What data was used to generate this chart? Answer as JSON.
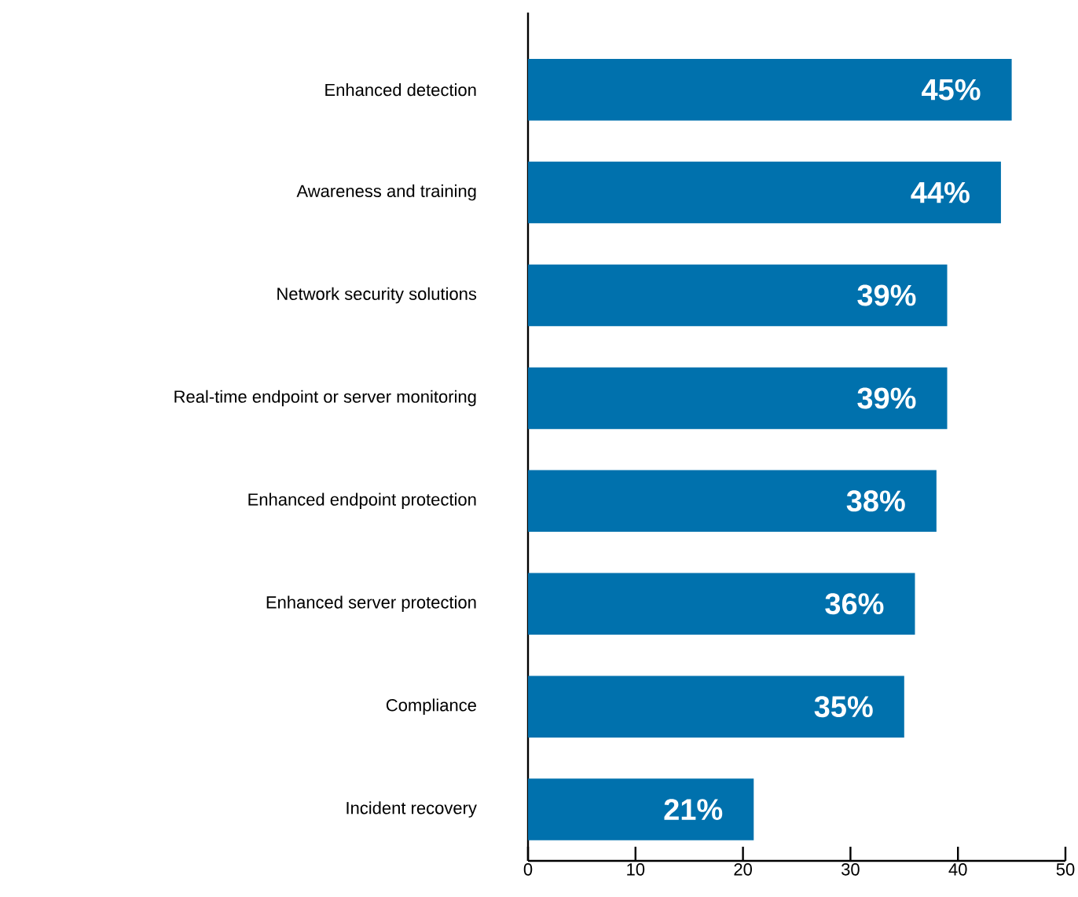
{
  "chart_data": {
    "type": "bar",
    "orientation": "horizontal",
    "categories": [
      "Enhanced detection",
      "Awareness and training",
      "Network security solutions",
      "Real-time endpoint or server monitoring",
      "Enhanced endpoint protection",
      "Enhanced server protection",
      "Compliance",
      "Incident recovery"
    ],
    "values": [
      45,
      44,
      39,
      39,
      38,
      36,
      35,
      21
    ],
    "value_labels": [
      "45%",
      "44%",
      "39%",
      "39%",
      "38%",
      "36%",
      "35%",
      "21%"
    ],
    "color": "#0071ad",
    "xlim": [
      0,
      50
    ],
    "xticks": [
      0,
      10,
      20,
      30,
      40,
      50
    ]
  }
}
